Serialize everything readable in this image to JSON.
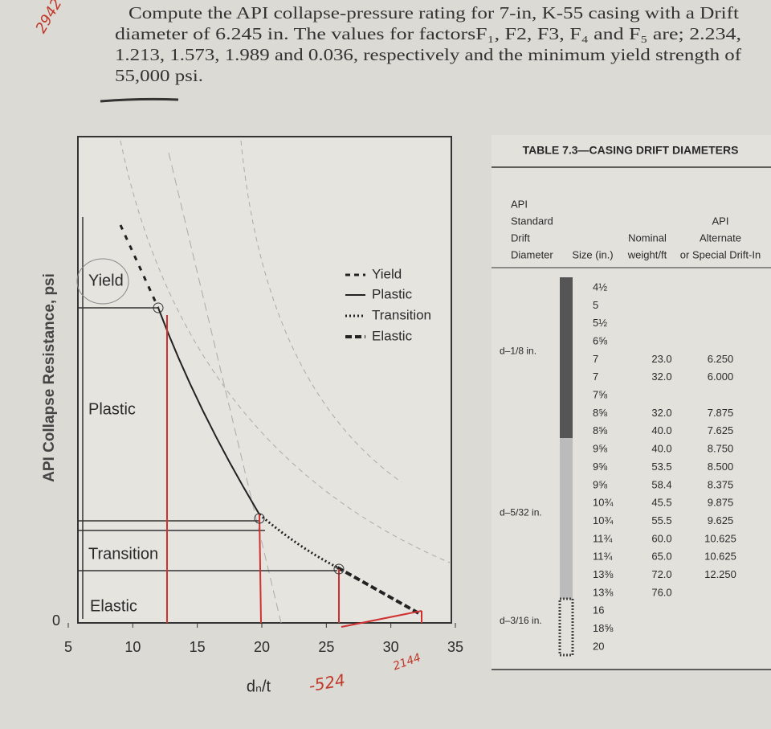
{
  "problem": {
    "lines": [
      "Compute the API collapse-pressure rating for 7-in, K-55 casing with a Drift",
      "diameter of 6.245 in. The values for factorsF₁, F2, F3, F₄ and F₅ are; 2.234,",
      "1.213, 1.573, 1.989 and 0.036, respectively and the minimum yield strength of",
      "55,000 psi."
    ]
  },
  "handwritten": {
    "page_number": "2942",
    "left_result": "-524",
    "right_result": "2144"
  },
  "figure": {
    "y_label": "API Collapse Resistance, psi",
    "x_label": "dₙ/t",
    "y_zero": "0",
    "xticks": [
      5,
      10,
      15,
      20,
      25,
      30,
      35
    ],
    "xlim": [
      5,
      35
    ],
    "legend": [
      "Yield",
      "Plastic",
      "Transition",
      "Elastic"
    ],
    "regions": [
      "Yield",
      "Plastic",
      "Transition",
      "Elastic"
    ]
  },
  "table": {
    "title": "TABLE 7.3—CASING DRIFT DIAMETERS",
    "headers": [
      [
        "API",
        "Standard",
        "Drift",
        "Diameter"
      ],
      [
        "Size (in.)"
      ],
      [
        "Nominal",
        "weight/ft"
      ],
      [
        "API",
        "Alternate",
        "or Special Drift-In"
      ]
    ],
    "rows": [
      {
        "size": "4½"
      },
      {
        "size": "5"
      },
      {
        "size": "5½"
      },
      {
        "size": "6⅝"
      },
      {
        "drift": "d–1/8 in.",
        "size": "7",
        "weight": "23.0",
        "alt": "6.250"
      },
      {
        "size": "7",
        "weight": "32.0",
        "alt": "6.000"
      },
      {
        "size": "7⅝"
      },
      {
        "size": "8⅝",
        "weight": "32.0",
        "alt": "7.875"
      },
      {
        "size": "8⅝",
        "weight": "40.0",
        "alt": "7.625"
      },
      {
        "size": "9⅝",
        "weight": "40.0",
        "alt": "8.750"
      },
      {
        "size": "9⅝",
        "weight": "53.5",
        "alt": "8.500"
      },
      {
        "size": "9⅝",
        "weight": "58.4",
        "alt": "8.375"
      },
      {
        "size": "10¾",
        "weight": "45.5",
        "alt": "9.875"
      },
      {
        "drift": "d–5/32 in.",
        "size": "10¾",
        "weight": "55.5",
        "alt": "9.625"
      },
      {
        "size": "11¾",
        "weight": "60.0",
        "alt": "10.625"
      },
      {
        "size": "11¾",
        "weight": "65.0",
        "alt": "10.625"
      },
      {
        "size": "13⅜",
        "weight": "72.0",
        "alt": "12.250"
      },
      {
        "size": "13⅜",
        "weight": "76.0"
      },
      {
        "size": "16"
      },
      {
        "drift": "d–3/16 in.",
        "size": "18⅝"
      },
      {
        "size": "20"
      }
    ]
  }
}
